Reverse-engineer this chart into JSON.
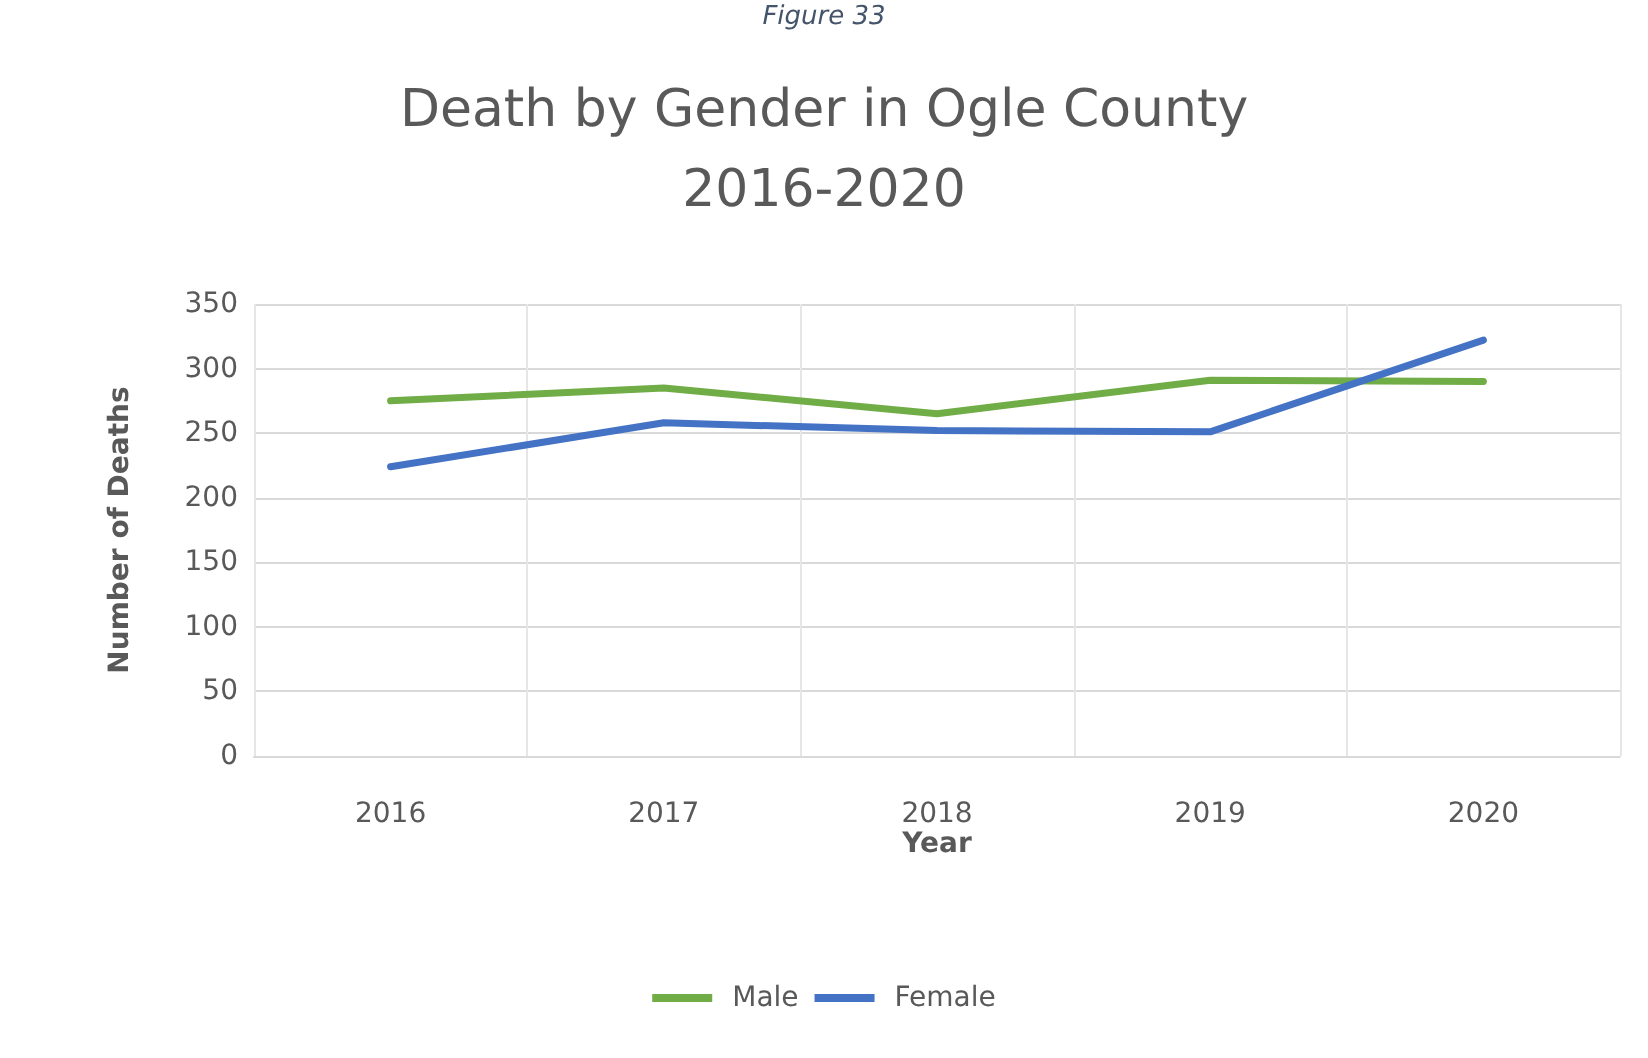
{
  "chart_data": {
    "type": "line",
    "title": "Death by Gender in Ogle County\n2016-2020",
    "annotations": [
      "Figure 33"
    ],
    "xlabel": "Year",
    "ylabel": "Number of Deaths",
    "categories": [
      "2016",
      "2017",
      "2018",
      "2019",
      "2020"
    ],
    "series": [
      {
        "name": "Male",
        "color": "#70ad47",
        "values": [
          275,
          285,
          265,
          291,
          290
        ]
      },
      {
        "name": "Female",
        "color": "#4472c4",
        "values": [
          224,
          258,
          252,
          251,
          322
        ]
      }
    ],
    "ylim": [
      0,
      350
    ],
    "yticks": [
      0,
      50,
      100,
      150,
      200,
      250,
      300,
      350
    ],
    "grid": true,
    "legend": "bottom",
    "marker": "none",
    "line_style": "solid"
  }
}
